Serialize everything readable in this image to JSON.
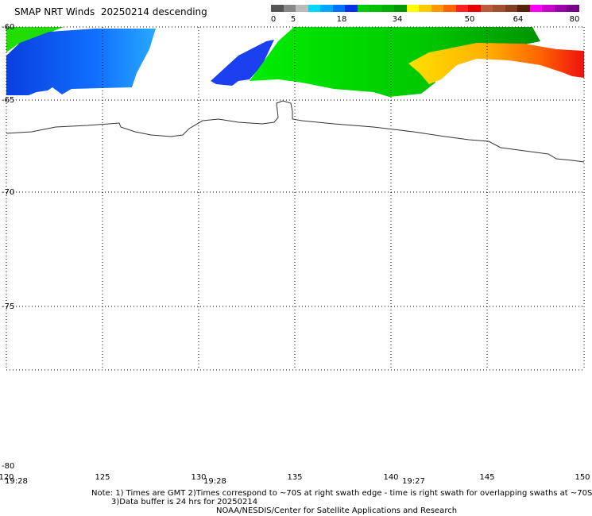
{
  "title": "SMAP NRT Winds  20250214 descending",
  "colorbar": {
    "labels": [
      "0",
      "5",
      "18",
      "34",
      "50",
      "64",
      "80"
    ],
    "colors": [
      "#555555",
      "#888888",
      "#bbbbbb",
      "#00d8ff",
      "#00a8ff",
      "#0070ff",
      "#0030e8",
      "#00cc00",
      "#00c000",
      "#00b000",
      "#009800",
      "#ffff00",
      "#ffcc00",
      "#ff9900",
      "#ff6600",
      "#ff2222",
      "#e80000",
      "#b85c3c",
      "#a05030",
      "#804020",
      "#552200",
      "#ff00ff",
      "#cc00cc",
      "#9900aa",
      "#770088"
    ]
  },
  "map": {
    "lat_labels": [
      "-60",
      "-65",
      "-70",
      "-75",
      "-80"
    ],
    "lon_labels": [
      "120",
      "125",
      "130",
      "135",
      "140",
      "145",
      "150"
    ]
  },
  "times": [
    "19:28",
    "19:28",
    "19:27"
  ],
  "notes": {
    "line1": "Note: 1) Times are GMT 2)Times correspond to ~70S at right swath edge - time is right swath for overlapping swaths at ~70S",
    "line2": "3)Data buffer is 24 hrs for 20250214",
    "line3": "NOAA/NESDIS/Center for Satellite Applications and Research"
  }
}
